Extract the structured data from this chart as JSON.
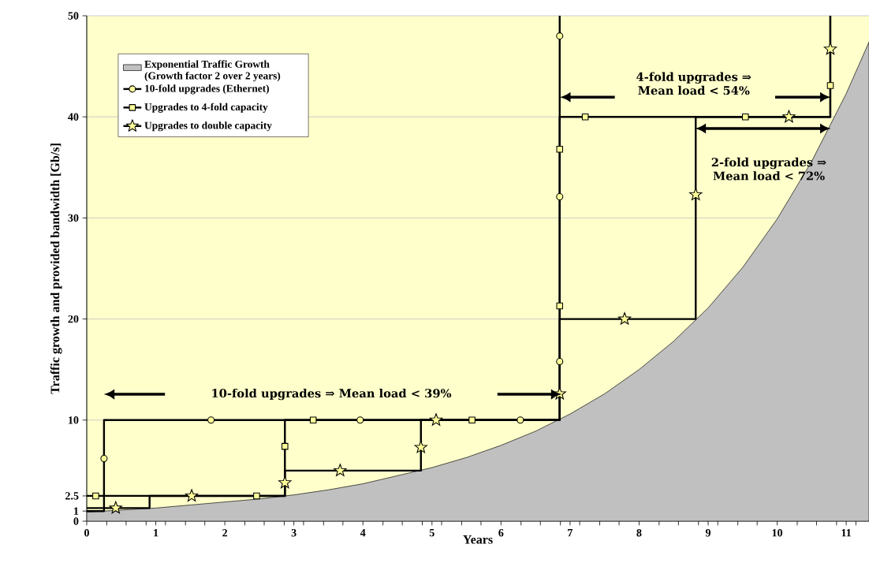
{
  "chart_data": {
    "type": "line",
    "xlabel": "Years",
    "ylabel": "Traffic growth and provided bandwidth [Gb/s]",
    "xlim": [
      0,
      11.33
    ],
    "ylim": [
      0,
      50
    ],
    "xticks": [
      0,
      {
        "value": 0.29,
        "label": null
      },
      {
        "value": 0.57,
        "label": null
      },
      {
        "value": 0.86,
        "label": null
      },
      1,
      {
        "value": 1.14,
        "label": null
      },
      {
        "value": 1.43,
        "label": null
      },
      {
        "value": 1.71,
        "label": null
      },
      2,
      {
        "value": 2.29,
        "label": null
      },
      {
        "value": 2.57,
        "label": null
      },
      {
        "value": 2.86,
        "label": null
      },
      3,
      {
        "value": 3.14,
        "label": null
      },
      {
        "value": 3.43,
        "label": null
      },
      {
        "value": 3.71,
        "label": null
      },
      4,
      {
        "value": 4.29,
        "label": null
      },
      {
        "value": 4.57,
        "label": null
      },
      {
        "value": 4.86,
        "label": null
      },
      5,
      {
        "value": 5.14,
        "label": null
      },
      {
        "value": 5.43,
        "label": null
      },
      {
        "value": 5.71,
        "label": null
      },
      6,
      {
        "value": 6.29,
        "label": null
      },
      {
        "value": 6.57,
        "label": null
      },
      {
        "value": 6.86,
        "label": null
      },
      7,
      {
        "value": 7.14,
        "label": null
      },
      {
        "value": 7.43,
        "label": null
      },
      {
        "value": 7.71,
        "label": null
      },
      8,
      {
        "value": 8.29,
        "label": null
      },
      {
        "value": 8.57,
        "label": null
      },
      {
        "value": 8.86,
        "label": null
      },
      9,
      {
        "value": 9.14,
        "label": null
      },
      {
        "value": 9.43,
        "label": null
      },
      {
        "value": 9.71,
        "label": null
      },
      10,
      {
        "value": 10.29,
        "label": null
      },
      {
        "value": 10.57,
        "label": null
      },
      {
        "value": 10.86,
        "label": null
      },
      11,
      {
        "value": 11.14,
        "label": null
      }
    ],
    "yticks": [
      0,
      1,
      2.5,
      10,
      20,
      30,
      40,
      50
    ],
    "grid": "y",
    "legend": "top left",
    "annotations": [
      "10-fold upgrades ⇒ Mean load < 39%",
      "4-fold upgrades ⇒ Mean load < 54%",
      "2-fold upgrades ⇒ Mean load < 72%"
    ],
    "series": [
      {
        "type": "area",
        "name": "Exponential Traffic Growth (Growth factor 2 over 2 years)",
        "color": "#c0c0c0",
        "x": [
          0,
          0.5,
          1,
          1.5,
          2,
          2.5,
          3,
          3.5,
          4,
          4.5,
          5,
          5.5,
          6,
          6.5,
          7,
          7.5,
          8,
          8.5,
          9,
          9.5,
          10,
          10.5,
          11,
          11.33
        ],
        "values": [
          0.9,
          1.1,
          1.3,
          1.6,
          1.9,
          2.2,
          2.6,
          3.1,
          3.7,
          4.5,
          5.3,
          6.3,
          7.5,
          8.9,
          10.6,
          12.6,
          15.0,
          17.8,
          21.1,
          25.1,
          29.9,
          35.6,
          42.3,
          47.4
        ]
      },
      {
        "name": "10-fold upgrades (Ethernet)",
        "color": "#000000",
        "marker": "none",
        "x": [
          0,
          0.25,
          0.25,
          6.85,
          6.85
        ],
        "values": [
          1,
          1,
          10,
          10,
          50
        ]
      },
      {
        "type": "scatter",
        "color": "#000000",
        "marker": "circle",
        "x": [
          0.25,
          1.8,
          3.96,
          6.28,
          6.85,
          6.85,
          6.85
        ],
        "values": [
          6.2,
          10,
          10,
          10,
          15.8,
          32.1,
          48.0
        ]
      },
      {
        "name": "Upgrades to 4-fold capacity",
        "color": "#000000",
        "marker": "none",
        "x": [
          0,
          2.87,
          2.87,
          6.85,
          6.85,
          10.77,
          10.77
        ],
        "values": [
          2.5,
          2.5,
          10,
          10,
          40,
          40,
          50
        ]
      },
      {
        "type": "scatter",
        "color": "#000000",
        "marker": "square",
        "x": [
          0.13,
          2.46,
          2.87,
          3.28,
          5.58,
          6.85,
          6.85,
          7.22,
          9.54,
          10.77
        ],
        "values": [
          2.5,
          2.5,
          7.4,
          10,
          10,
          21.3,
          36.8,
          40,
          40,
          43.1
        ]
      },
      {
        "name": "Upgrades to double capacity",
        "color": "#000000",
        "marker": "none",
        "x": [
          0,
          0.91,
          0.91,
          2.87,
          2.87,
          4.84,
          4.84,
          6.85,
          6.85,
          8.82,
          8.82,
          10.77,
          10.77
        ],
        "values": [
          1.3,
          1.3,
          2.5,
          2.5,
          5,
          5,
          10,
          10,
          20,
          20,
          40,
          40,
          50
        ]
      },
      {
        "type": "scatter",
        "color": "#000000",
        "marker": "star",
        "x": [
          0.42,
          1.52,
          2.87,
          3.67,
          4.84,
          5.06,
          6.85,
          7.79,
          8.82,
          10.17,
          10.77
        ],
        "values": [
          1.3,
          2.5,
          3.8,
          5,
          7.3,
          10,
          12.6,
          20,
          32.3,
          40,
          46.7
        ]
      }
    ]
  }
}
